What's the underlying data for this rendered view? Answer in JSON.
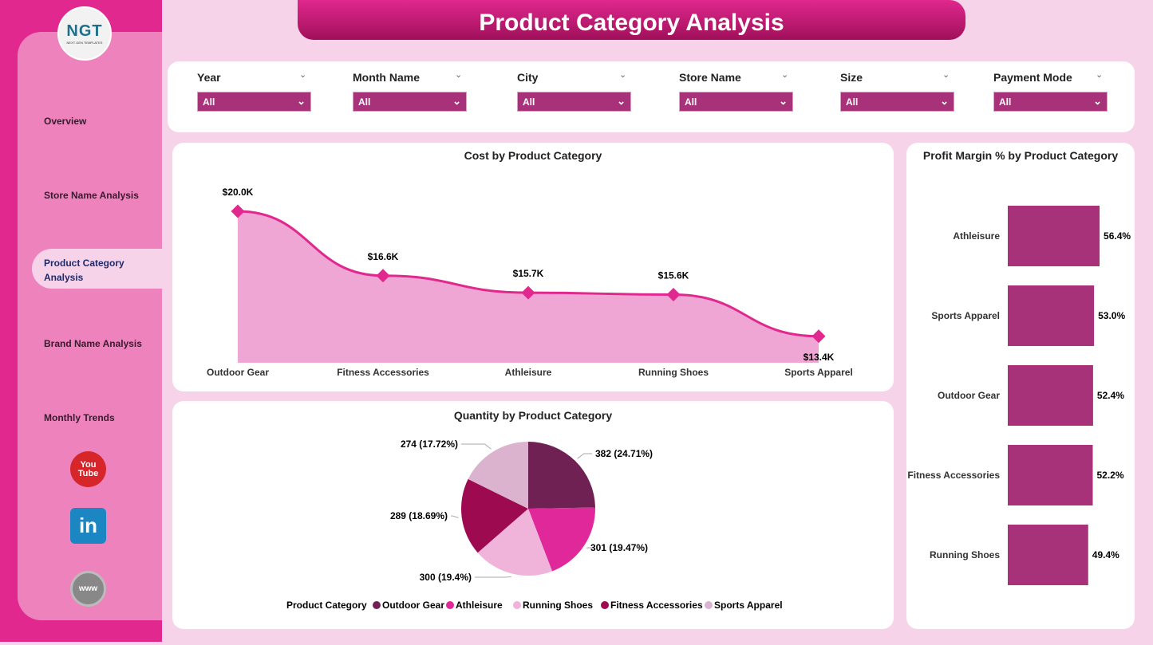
{
  "logo": {
    "text": "NGT",
    "subtext": "NEXT GEN TEMPLATES"
  },
  "sidebar": {
    "items": [
      {
        "label": "Overview"
      },
      {
        "label": "Store Name Analysis"
      },
      {
        "label": "Product Category Analysis",
        "active": true
      },
      {
        "label": "Brand Name Analysis"
      },
      {
        "label": "Monthly Trends"
      }
    ],
    "social": [
      {
        "icon": "youtube-icon",
        "label": "You Tube"
      },
      {
        "icon": "linkedin-icon",
        "label": "in"
      },
      {
        "icon": "globe-www-icon",
        "label": "www"
      }
    ]
  },
  "header": {
    "title": "Product Category Analysis"
  },
  "filters": [
    {
      "label": "Year",
      "value": "All"
    },
    {
      "label": "Month Name",
      "value": "All"
    },
    {
      "label": "City",
      "value": "All"
    },
    {
      "label": "Store Name",
      "value": "All"
    },
    {
      "label": "Size",
      "value": "All"
    },
    {
      "label": "Payment Mode",
      "value": "All"
    }
  ],
  "colors": {
    "accent": "#e0288e",
    "bar": "#a8327a",
    "area": "#f0a6d4"
  },
  "chart_data": [
    {
      "type": "area",
      "title": "Cost by Product Category",
      "categories": [
        "Outdoor Gear",
        "Fitness Accessories",
        "Athleisure",
        "Running Shoes",
        "Sports Apparel"
      ],
      "values": [
        20.0,
        16.6,
        15.7,
        15.6,
        13.4
      ],
      "labels": [
        "$20.0K",
        "$16.6K",
        "$15.7K",
        "$15.6K",
        "$13.4K"
      ],
      "unit": "$K"
    },
    {
      "type": "pie",
      "title": "Quantity by Product Category",
      "legend_title": "Product Category",
      "legend_position": "bottom",
      "categories": [
        "Outdoor Gear",
        "Athleisure",
        "Running Shoes",
        "Fitness Accessories",
        "Sports Apparel"
      ],
      "values": [
        382,
        301,
        300,
        289,
        274
      ],
      "labels": [
        "382 (24.71%)",
        "301 (19.47%)",
        "300 (19.4%)",
        "289 (18.69%)",
        "274 (17.72%)"
      ],
      "colors": [
        "#6e2152",
        "#e0289a",
        "#f0b3da",
        "#9e0a50",
        "#dbb3cf"
      ]
    },
    {
      "type": "bar",
      "orientation": "horizontal",
      "title": "Profit Margin % by Product Category",
      "categories": [
        "Athleisure",
        "Sports Apparel",
        "Outdoor Gear",
        "Fitness Accessories",
        "Running Shoes"
      ],
      "values": [
        56.4,
        53.0,
        52.4,
        52.2,
        49.4
      ],
      "labels": [
        "56.4%",
        "53.0%",
        "52.4%",
        "52.2%",
        "49.4%"
      ]
    }
  ]
}
